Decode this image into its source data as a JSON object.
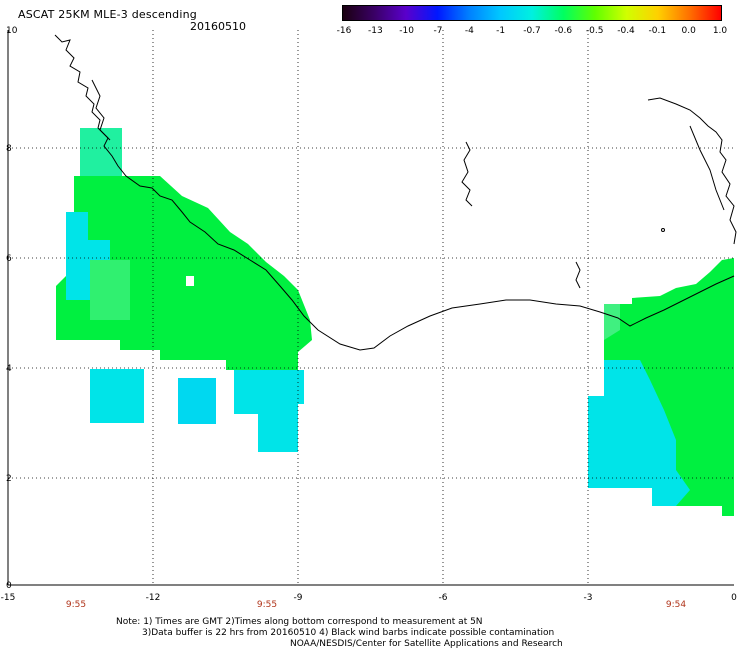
{
  "header": {
    "title": "ASCAT 25KM MLE-3 descending",
    "date": "20160510"
  },
  "colorbar": {
    "labels": [
      "-16",
      "-13",
      "-10",
      "-7",
      "-4",
      "-1",
      "-0.7",
      "-0.6",
      "-0.5",
      "-0.4",
      "-0.1",
      "0.0",
      "1.0"
    ],
    "colors": [
      "#1a0010",
      "#3a0066",
      "#5a00cc",
      "#0018ff",
      "#0080ff",
      "#00c8ff",
      "#00f0e0",
      "#00ff60",
      "#60ff00",
      "#d0ff00",
      "#ffd000",
      "#ff7000",
      "#ff0000"
    ]
  },
  "axes": {
    "x_ticks": [
      "-15",
      "-12",
      "-9",
      "-6",
      "-3",
      "0"
    ],
    "y_ticks": [
      "0",
      "2",
      "4",
      "6",
      "8",
      "10"
    ]
  },
  "times": [
    "9:55",
    "9:55",
    "9:54"
  ],
  "notes": {
    "line1": "Note: 1) Times are GMT 2)Times along bottom correspond to measurement at 5N",
    "line2": "3)Data buffer is 22 hrs from 20160510 4) Black wind barbs indicate possible contamination",
    "line3": "NOAA/NESDIS/Center for Satellite Applications and Research"
  },
  "swath_colors": {
    "green": "#00f040",
    "cyan": "#00e4e8",
    "light_cyan": "#00d8f0",
    "mint": "#20f0a0"
  }
}
